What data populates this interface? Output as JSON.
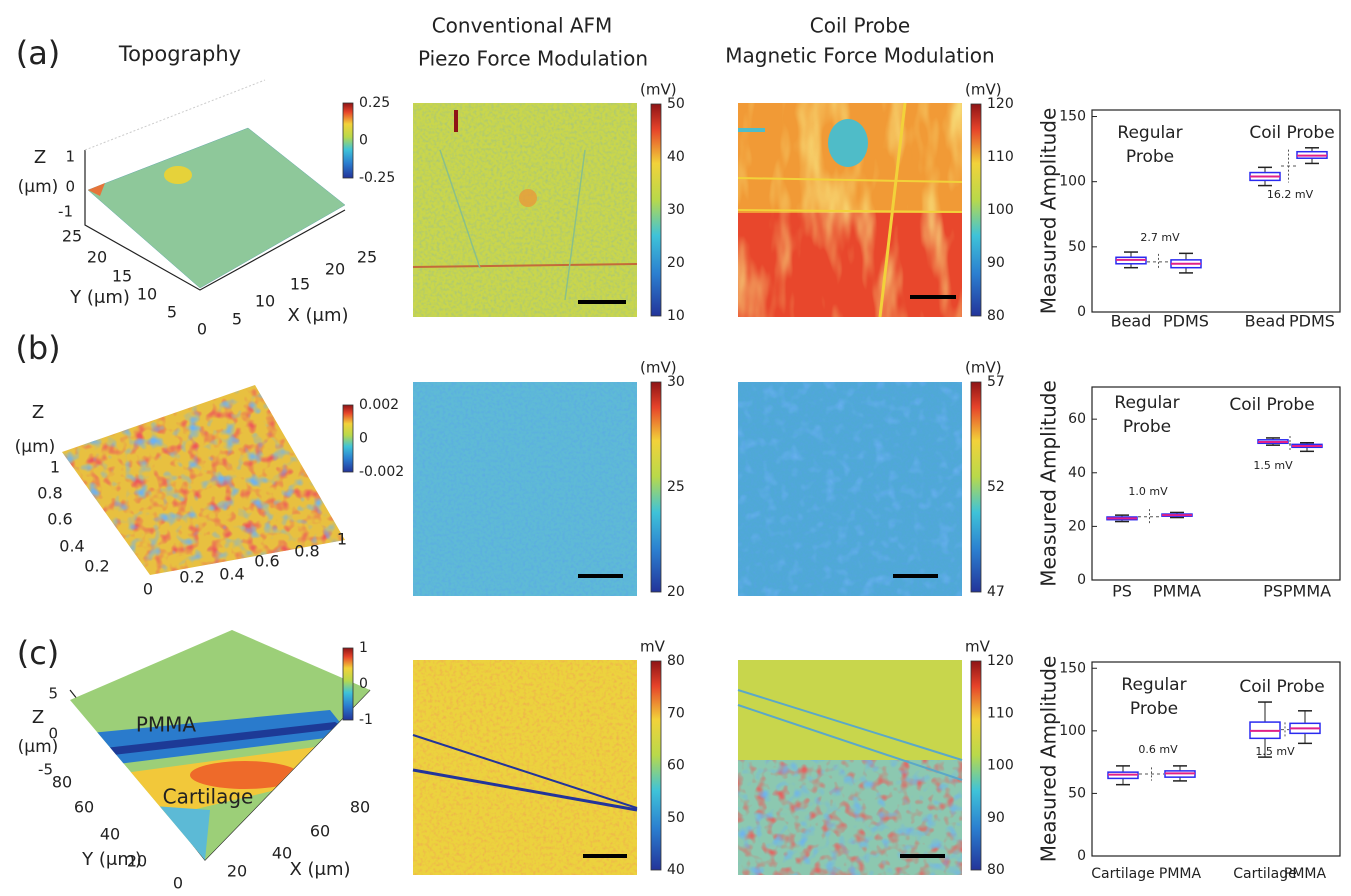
{
  "headers": {
    "topography": "Topography",
    "afm": [
      "Conventional AFM",
      "Piezo Force Modulation"
    ],
    "coil": [
      "Coil Probe",
      "Magnetic Force Modulation"
    ]
  },
  "rows": [
    {
      "label": "(a)",
      "topo": {
        "colorbar": [
          "0.25",
          "0",
          "-0.25"
        ],
        "z_label": "Z",
        "unit": "(μm)",
        "z_ticks": [
          "1",
          "0",
          "-1"
        ],
        "y_label": "Y (μm)",
        "y_ticks": [
          "25",
          "20",
          "15",
          "10",
          "5",
          "0"
        ],
        "x_label": "X (μm)",
        "x_ticks": [
          "5",
          "10",
          "15",
          "20",
          "25"
        ],
        "annotations": []
      },
      "afm_colorbar": {
        "unit": "(mV)",
        "ticks": [
          "50",
          "40",
          "30",
          "20",
          "10"
        ]
      },
      "coil_colorbar": {
        "unit": "(mV)",
        "ticks": [
          "120",
          "110",
          "100",
          "90",
          "80"
        ]
      },
      "boxplot": {
        "ylabel": "Measured Amplitude",
        "ylim": [
          0,
          155
        ],
        "yticks": [
          0,
          50,
          100,
          150
        ],
        "groups": [
          {
            "name": [
              "Regular",
              "Probe"
            ],
            "color": "#1a1aee",
            "categories": [
              "Bead",
              "PDMS"
            ],
            "difference": "2.7 mV",
            "boxes": [
              {
                "min": 34,
                "q1": 37,
                "median": 40,
                "q3": 42,
                "max": 46
              },
              {
                "min": 30,
                "q1": 34,
                "median": 37,
                "q3": 40,
                "max": 45
              }
            ]
          },
          {
            "name": [
              "Coil Probe"
            ],
            "color": "#ee1a1a",
            "categories": [
              "Bead",
              "PDMS"
            ],
            "difference": "16.2 mV",
            "boxes": [
              {
                "min": 97,
                "q1": 101,
                "median": 104,
                "q3": 107,
                "max": 111
              },
              {
                "min": 114,
                "q1": 118,
                "median": 120,
                "q3": 123,
                "max": 126
              }
            ]
          }
        ]
      }
    },
    {
      "label": "(b)",
      "topo": {
        "colorbar": [
          "0.002",
          "0",
          "-0.002"
        ],
        "z_label": "Z",
        "unit": "(μm)",
        "z_ticks": [],
        "y_ticks": [
          "1",
          "0.8",
          "0.6",
          "0.4",
          "0.2",
          "0"
        ],
        "x_ticks": [
          "0.2",
          "0.4",
          "0.6",
          "0.8",
          "1"
        ],
        "annotations": []
      },
      "afm_colorbar": {
        "unit": "(mV)",
        "ticks": [
          "30",
          "25",
          "20"
        ]
      },
      "coil_colorbar": {
        "unit": "(mV)",
        "ticks": [
          "57",
          "52",
          "47"
        ]
      },
      "boxplot": {
        "ylabel": "Measured Amplitude",
        "ylim": [
          0,
          72
        ],
        "yticks": [
          0,
          20,
          40,
          60
        ],
        "groups": [
          {
            "name": [
              "Regular",
              "Probe"
            ],
            "color": "#1a1aee",
            "categories": [
              "PS",
              "PMMA"
            ],
            "difference": "1.0 mV",
            "boxes": [
              {
                "min": 21.8,
                "q1": 22.5,
                "median": 23,
                "q3": 23.5,
                "max": 24.2
              },
              {
                "min": 23.3,
                "q1": 23.8,
                "median": 24.2,
                "q3": 24.6,
                "max": 25.2
              }
            ]
          },
          {
            "name": [
              "Coil Probe"
            ],
            "color": "#ee1a1a",
            "categories": [
              "PS",
              "PMMA"
            ],
            "difference": "1.5 mV",
            "boxes": [
              {
                "min": 50.3,
                "q1": 51,
                "median": 51.5,
                "q3": 52.3,
                "max": 53
              },
              {
                "min": 48,
                "q1": 49.5,
                "median": 50,
                "q3": 50.6,
                "max": 51.2
              }
            ]
          }
        ]
      }
    },
    {
      "label": "(c)",
      "topo": {
        "colorbar": [
          "1",
          "0",
          "-1"
        ],
        "z_label": "Z",
        "unit": "(μm)",
        "z_ticks": [
          "5",
          "0",
          "-5"
        ],
        "y_label": "Y (μm)",
        "y_ticks": [
          "80",
          "60",
          "40",
          "20",
          "0"
        ],
        "x_label": "X (μm)",
        "x_ticks": [
          "20",
          "40",
          "60",
          "80"
        ],
        "annotations": [
          "PMMA",
          "Cartilage"
        ]
      },
      "afm_colorbar": {
        "unit": "mV",
        "ticks": [
          "80",
          "70",
          "60",
          "50",
          "40"
        ]
      },
      "coil_colorbar": {
        "unit": "mV",
        "ticks": [
          "120",
          "110",
          "100",
          "90",
          "80"
        ]
      },
      "boxplot": {
        "ylabel": "Measured Amplitude",
        "ylim": [
          0,
          155
        ],
        "yticks": [
          0,
          50,
          100,
          150
        ],
        "groups": [
          {
            "name": [
              "Regular",
              "Probe"
            ],
            "color": "#1a1aee",
            "categories": [
              "Cartilage",
              "PMMA"
            ],
            "difference": "0.6 mV",
            "boxes": [
              {
                "min": 57,
                "q1": 62,
                "median": 65,
                "q3": 67,
                "max": 72
              },
              {
                "min": 60,
                "q1": 63,
                "median": 66,
                "q3": 68,
                "max": 72
              }
            ]
          },
          {
            "name": [
              "Coil Probe"
            ],
            "color": "#ee1a1a",
            "categories": [
              "Cartilage",
              "PMMA"
            ],
            "difference": "1.5 mV",
            "boxes": [
              {
                "min": 79,
                "q1": 94,
                "median": 100,
                "q3": 107,
                "max": 123
              },
              {
                "min": 90,
                "q1": 98,
                "median": 102,
                "q3": 106,
                "max": 116
              }
            ]
          }
        ]
      }
    }
  ]
}
